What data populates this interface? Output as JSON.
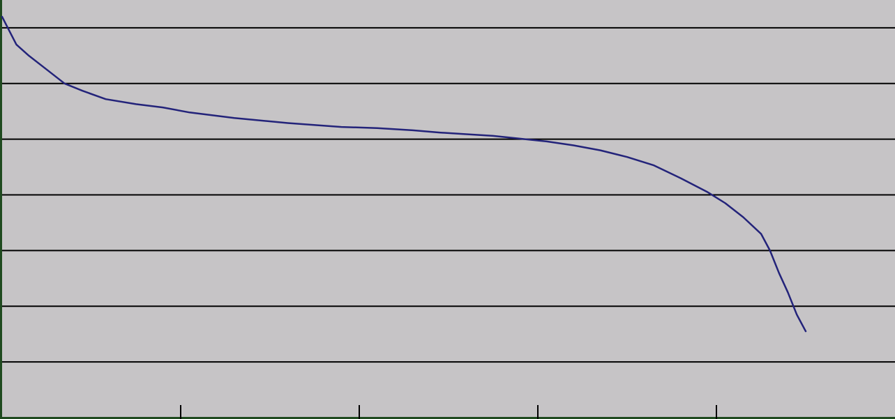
{
  "chart_data": {
    "type": "line",
    "title": "",
    "xlabel": "",
    "ylabel": "",
    "grid": true,
    "legend": "none",
    "xlim": [
      0,
      5
    ],
    "ylim": [
      0,
      7.5
    ],
    "y_gridlines": [
      1,
      2,
      3,
      4,
      5,
      6,
      7
    ],
    "x_ticks": [
      1,
      2,
      3,
      4
    ],
    "colors": {
      "background": "#c6c4c6",
      "gridline": "#000000",
      "axis": "#1f4a1f",
      "series": "#23237a"
    },
    "series": [
      {
        "name": "",
        "x": [
          0.0,
          0.04,
          0.08,
          0.15,
          0.25,
          0.35,
          0.45,
          0.58,
          0.75,
          0.9,
          1.05,
          1.3,
          1.6,
          1.9,
          2.1,
          2.3,
          2.45,
          2.6,
          2.75,
          2.9,
          3.05,
          3.2,
          3.35,
          3.5,
          3.65,
          3.8,
          3.95,
          4.05,
          4.15,
          4.25,
          4.3,
          4.35,
          4.4,
          4.45,
          4.5
        ],
        "y": [
          7.2,
          6.95,
          6.7,
          6.5,
          6.25,
          6.0,
          5.87,
          5.72,
          5.63,
          5.57,
          5.48,
          5.38,
          5.29,
          5.22,
          5.2,
          5.16,
          5.12,
          5.09,
          5.06,
          5.01,
          4.96,
          4.89,
          4.8,
          4.68,
          4.53,
          4.3,
          4.05,
          3.85,
          3.6,
          3.3,
          3.0,
          2.6,
          2.25,
          1.85,
          1.55
        ]
      }
    ]
  }
}
